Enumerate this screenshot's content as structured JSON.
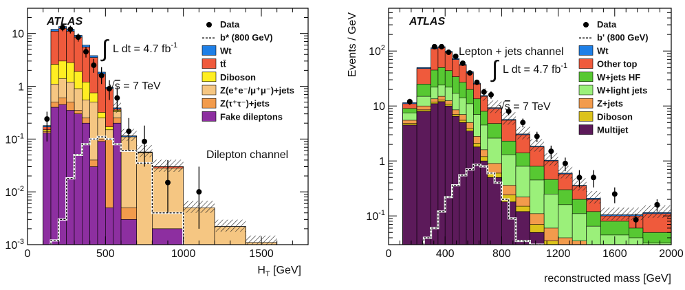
{
  "colors": {
    "wt": "#1e7fe6",
    "ttbar": "#ef5a3c",
    "other_top": "#ef5a3c",
    "diboson_left": "#ffee22",
    "z_ee_mm": "#f5c682",
    "z_tautau": "#f29b4c",
    "fake": "#8d2fa0",
    "w_hf": "#57c832",
    "w_light": "#9bf07a",
    "z_jets": "#f29b4c",
    "diboson_right": "#dcc21a",
    "multijet": "#5c1a5a"
  },
  "chart_data": [
    {
      "type": "bar",
      "title": "",
      "experiment_label": "ATLAS",
      "lumi_text": "L dt = 4.7 fb",
      "lumi_exp": "-1",
      "integral_symbol": "∫",
      "energy_text": "s = 7 TeV",
      "sqrt_symbol": "√",
      "channel_text": "Dilepton channel",
      "xlabel": "H",
      "xlabel_sub": "T",
      "xlabel_unit": "[GeV]",
      "ylabel": "",
      "log_y": true,
      "xlim": [
        0,
        1800
      ],
      "ylim": [
        0.001,
        30
      ],
      "xticks": [
        0,
        500,
        1000,
        1500
      ],
      "yticks": [
        {
          "value": 0.001,
          "base": "10",
          "exp": "-3"
        },
        {
          "value": 0.01,
          "base": "10",
          "exp": "-2"
        },
        {
          "value": 0.1,
          "base": "10",
          "exp": "-1"
        },
        {
          "value": 1,
          "base": "1",
          "exp": ""
        },
        {
          "value": 10,
          "base": "10",
          "exp": ""
        }
      ],
      "bin_edges": [
        100,
        150,
        200,
        250,
        300,
        350,
        400,
        450,
        500,
        550,
        600,
        700,
        800,
        1000,
        1200,
        1400,
        1600
      ],
      "series": [
        {
          "name": "Fake dileptons",
          "color_key": "fake",
          "top": [
            0.13,
            0.4,
            0.45,
            0.35,
            0.3,
            0.2,
            0.03,
            0.09,
            0.005,
            0.2,
            0.003,
            0.001,
            0.002,
            0.001,
            0.001,
            0.001
          ]
        },
        {
          "name": "Z(τ⁺τ⁻)+jets",
          "color_key": "z_tautau",
          "top": [
            0.14,
            0.5,
            0.6,
            0.5,
            0.35,
            0.25,
            0.04,
            0.1,
            0.1,
            0.25,
            0.005,
            0.001,
            0.002,
            0.001,
            0.001,
            0.001
          ]
        },
        {
          "name": "Z(e⁺e⁻/μ⁺μ⁻)+jets",
          "color_key": "z_ee_mm",
          "top": [
            0.14,
            1.1,
            1.4,
            1.2,
            0.9,
            0.55,
            0.5,
            0.25,
            0.15,
            0.33,
            0.11,
            0.055,
            0.028,
            0.005,
            0.0022,
            0.0011
          ]
        },
        {
          "name": "Diboson",
          "color_key": "diboson_left",
          "top": [
            0.15,
            2.6,
            3.0,
            2.8,
            1.9,
            1.2,
            0.75,
            0.32,
            0.17,
            0.35,
            0.11,
            0.056,
            0.028,
            0.005,
            0.0022,
            0.0011
          ]
        },
        {
          "name": "tt̄",
          "color_key": "ttbar",
          "top": [
            0.17,
            11,
            12.5,
            11,
            8.5,
            5.5,
            3.5,
            1.7,
            0.9,
            0.37,
            0.11,
            0.056,
            0.03,
            0.005,
            0.0022,
            0.0011
          ]
        },
        {
          "name": "Wt",
          "color_key": "wt",
          "top": [
            0.18,
            12,
            13.5,
            12,
            9.2,
            6,
            3.8,
            1.85,
            0.95,
            0.39,
            0.115,
            0.057,
            0.03,
            0.005,
            0.0022,
            0.0011
          ]
        }
      ],
      "signal": {
        "name": "b* (800 GeV)",
        "bin_edges": [
          150,
          200,
          250,
          300,
          350,
          400,
          450,
          500,
          550,
          600,
          700,
          800,
          1000
        ],
        "values": [
          0.0012,
          0.003,
          0.018,
          0.05,
          0.08,
          0.1,
          0.11,
          0.1,
          0.08,
          0.06,
          0.035,
          0.004
        ]
      },
      "data_points": [
        {
          "x": 125,
          "y": 0.24,
          "err_low": 0.09,
          "err_high": 0.33
        },
        {
          "x": 225,
          "y": 13,
          "err_low": 11,
          "err_high": 15
        },
        {
          "x": 275,
          "y": 12,
          "err_low": 10,
          "err_high": 14
        },
        {
          "x": 325,
          "y": 8.5,
          "err_low": 7,
          "err_high": 10
        },
        {
          "x": 375,
          "y": 4.5,
          "err_low": 3.5,
          "err_high": 5.6
        },
        {
          "x": 425,
          "y": 2.5,
          "err_low": 1.8,
          "err_high": 3.3
        },
        {
          "x": 475,
          "y": 1.6,
          "err_low": 1.1,
          "err_high": 2.3
        },
        {
          "x": 525,
          "y": 0.9,
          "err_low": 0.55,
          "err_high": 1.3
        },
        {
          "x": 575,
          "y": 0.6,
          "err_low": 0.35,
          "err_high": 0.95
        },
        {
          "x": 650,
          "y": 0.14,
          "err_low": 0.06,
          "err_high": 0.25
        },
        {
          "x": 750,
          "y": 0.09,
          "err_low": 0.03,
          "err_high": 0.18
        },
        {
          "x": 900,
          "y": 0.015,
          "err_low": 0.004,
          "err_high": 0.04
        },
        {
          "x": 1100,
          "y": 0.01,
          "err_low": 0.002,
          "err_high": 0.03
        }
      ],
      "legend": [
        {
          "label": "Data",
          "kind": "marker"
        },
        {
          "label": "b* (800 GeV)",
          "kind": "dashed"
        },
        {
          "label": "Wt",
          "kind": "box",
          "color_key": "wt"
        },
        {
          "label": "tt̄",
          "kind": "box",
          "color_key": "ttbar"
        },
        {
          "label": "Diboson",
          "kind": "box",
          "color_key": "diboson_left"
        },
        {
          "label": "Z(e⁺e⁻/μ⁺μ⁻)+jets",
          "kind": "box",
          "color_key": "z_ee_mm"
        },
        {
          "label": "Z(τ⁺τ⁻)+jets",
          "kind": "box",
          "color_key": "z_tautau"
        },
        {
          "label": "Fake dileptons",
          "kind": "box",
          "color_key": "fake"
        }
      ]
    },
    {
      "type": "bar",
      "title": "",
      "experiment_label": "ATLAS",
      "lumi_text": "L dt = 4.7 fb",
      "lumi_exp": "-1",
      "integral_symbol": "∫",
      "energy_text": "s = 7 TeV",
      "sqrt_symbol": "√",
      "channel_text": "Lepton + jets channel",
      "xlabel": "reconstructed mass [GeV]",
      "ylabel": "Events / GeV",
      "log_y": true,
      "xlim": [
        0,
        2000
      ],
      "ylim": [
        0.03,
        600
      ],
      "xticks": [
        0,
        400,
        800,
        1200,
        1600,
        2000
      ],
      "yticks": [
        {
          "value": 0.1,
          "base": "10",
          "exp": "-1"
        },
        {
          "value": 1,
          "base": "1",
          "exp": ""
        },
        {
          "value": 10,
          "base": "10",
          "exp": ""
        },
        {
          "value": 100,
          "base": "10",
          "exp": "2"
        }
      ],
      "bin_edges": [
        100,
        200,
        300,
        350,
        400,
        450,
        500,
        550,
        600,
        650,
        700,
        800,
        900,
        1000,
        1100,
        1200,
        1300,
        1400,
        1500,
        1700,
        1800,
        2000
      ],
      "series": [
        {
          "name": "Multijet",
          "color_key": "multijet",
          "top": [
            4.5,
            8,
            11,
            12,
            10,
            6.5,
            5,
            3.5,
            1.8,
            1.0,
            0.5,
            0.18,
            0.12,
            0.05,
            0.03,
            0.03,
            0.03,
            0.03,
            0.03,
            0.03,
            0.03
          ]
        },
        {
          "name": "Diboson",
          "color_key": "diboson_right",
          "top": [
            4.8,
            8.5,
            11.8,
            12.8,
            10.8,
            7,
            5.5,
            3.9,
            2.1,
            1.2,
            0.6,
            0.24,
            0.15,
            0.07,
            0.035,
            0.03,
            0.03,
            0.03,
            0.03,
            0.03,
            0.03
          ]
        },
        {
          "name": "Z+jets",
          "color_key": "z_jets",
          "top": [
            5.5,
            10,
            13.5,
            15,
            12.5,
            8.5,
            7,
            5,
            2.8,
            1.6,
            0.9,
            0.36,
            0.22,
            0.11,
            0.06,
            0.04,
            0.035,
            0.03,
            0.03,
            0.03,
            0.03
          ]
        },
        {
          "name": "W+light jets",
          "color_key": "w_light",
          "top": [
            7.5,
            15,
            22,
            24,
            22,
            17,
            14,
            11,
            7,
            4.5,
            2.6,
            1.3,
            0.8,
            0.45,
            0.25,
            0.16,
            0.11,
            0.065,
            0.045,
            0.04,
            0.032
          ]
        },
        {
          "name": "W+jets HF",
          "color_key": "w_hf",
          "top": [
            9,
            25,
            45,
            50,
            44,
            34,
            27,
            20,
            13.5,
            8,
            4.8,
            2.3,
            1.4,
            0.8,
            0.46,
            0.3,
            0.2,
            0.12,
            0.08,
            0.06,
            0.05
          ]
        },
        {
          "name": "Other top",
          "color_key": "other_top",
          "top": [
            11,
            48,
            110,
            115,
            95,
            70,
            55,
            40,
            25,
            15,
            9,
            5.5,
            3,
            1.8,
            1.0,
            0.58,
            0.35,
            0.2,
            0.1,
            0.1,
            0.11
          ]
        },
        {
          "name": "Wt",
          "color_key": "wt",
          "top": [
            11.5,
            50,
            115,
            120,
            99,
            73,
            57,
            42,
            26,
            15.5,
            9.3,
            5.7,
            3.1,
            1.85,
            1.03,
            0.6,
            0.36,
            0.21,
            0.105,
            0.105,
            0.115
          ]
        }
      ],
      "signal": {
        "name": "b' (800 GeV)",
        "bin_edges": [
          250,
          300,
          350,
          400,
          450,
          500,
          550,
          600,
          650,
          700,
          750,
          800,
          850,
          900,
          1000,
          1100
        ],
        "values": [
          0.04,
          0.06,
          0.12,
          0.22,
          0.36,
          0.55,
          0.7,
          0.85,
          0.8,
          0.6,
          0.4,
          0.2,
          0.09,
          0.035,
          0.02
        ]
      },
      "data_points": [
        {
          "x": 150,
          "y": 12,
          "err_low": 10.5,
          "err_high": 13.5
        },
        {
          "x": 325,
          "y": 120,
          "err_low": 112,
          "err_high": 128
        },
        {
          "x": 375,
          "y": 120,
          "err_low": 112,
          "err_high": 128
        },
        {
          "x": 425,
          "y": 95,
          "err_low": 88,
          "err_high": 102
        },
        {
          "x": 475,
          "y": 80,
          "err_low": 74,
          "err_high": 86
        },
        {
          "x": 525,
          "y": 60,
          "err_low": 55,
          "err_high": 65
        },
        {
          "x": 575,
          "y": 40,
          "err_low": 36,
          "err_high": 44
        },
        {
          "x": 625,
          "y": 27,
          "err_low": 24,
          "err_high": 30
        },
        {
          "x": 675,
          "y": 18,
          "err_low": 15.5,
          "err_high": 20.5
        },
        {
          "x": 725,
          "y": 16,
          "err_low": 13.5,
          "err_high": 18.5
        },
        {
          "x": 850,
          "y": 8,
          "err_low": 6.8,
          "err_high": 9.2
        },
        {
          "x": 950,
          "y": 5,
          "err_low": 4.1,
          "err_high": 5.9
        },
        {
          "x": 1050,
          "y": 2.8,
          "err_low": 2.2,
          "err_high": 3.4
        },
        {
          "x": 1150,
          "y": 1.5,
          "err_low": 1.1,
          "err_high": 1.9
        },
        {
          "x": 1250,
          "y": 0.9,
          "err_low": 0.65,
          "err_high": 1.15
        },
        {
          "x": 1350,
          "y": 0.5,
          "err_low": 0.33,
          "err_high": 0.68
        },
        {
          "x": 1450,
          "y": 0.5,
          "err_low": 0.33,
          "err_high": 0.68
        },
        {
          "x": 1600,
          "y": 0.25,
          "err_low": 0.17,
          "err_high": 0.33
        },
        {
          "x": 1750,
          "y": 0.085,
          "err_low": 0.06,
          "err_high": 0.11
        },
        {
          "x": 1900,
          "y": 0.16,
          "err_low": 0.12,
          "err_high": 0.2
        }
      ],
      "legend": [
        {
          "label": "Data",
          "kind": "marker"
        },
        {
          "label": "b' (800 GeV)",
          "kind": "dashed"
        },
        {
          "label": "Wt",
          "kind": "box",
          "color_key": "wt"
        },
        {
          "label": "Other top",
          "kind": "box",
          "color_key": "other_top"
        },
        {
          "label": "W+jets HF",
          "kind": "box",
          "color_key": "w_hf"
        },
        {
          "label": "W+light jets",
          "kind": "box",
          "color_key": "w_light"
        },
        {
          "label": "Z+jets",
          "kind": "box",
          "color_key": "z_jets"
        },
        {
          "label": "Diboson",
          "kind": "box",
          "color_key": "diboson_right"
        },
        {
          "label": "Multijet",
          "kind": "box",
          "color_key": "multijet"
        }
      ]
    }
  ]
}
